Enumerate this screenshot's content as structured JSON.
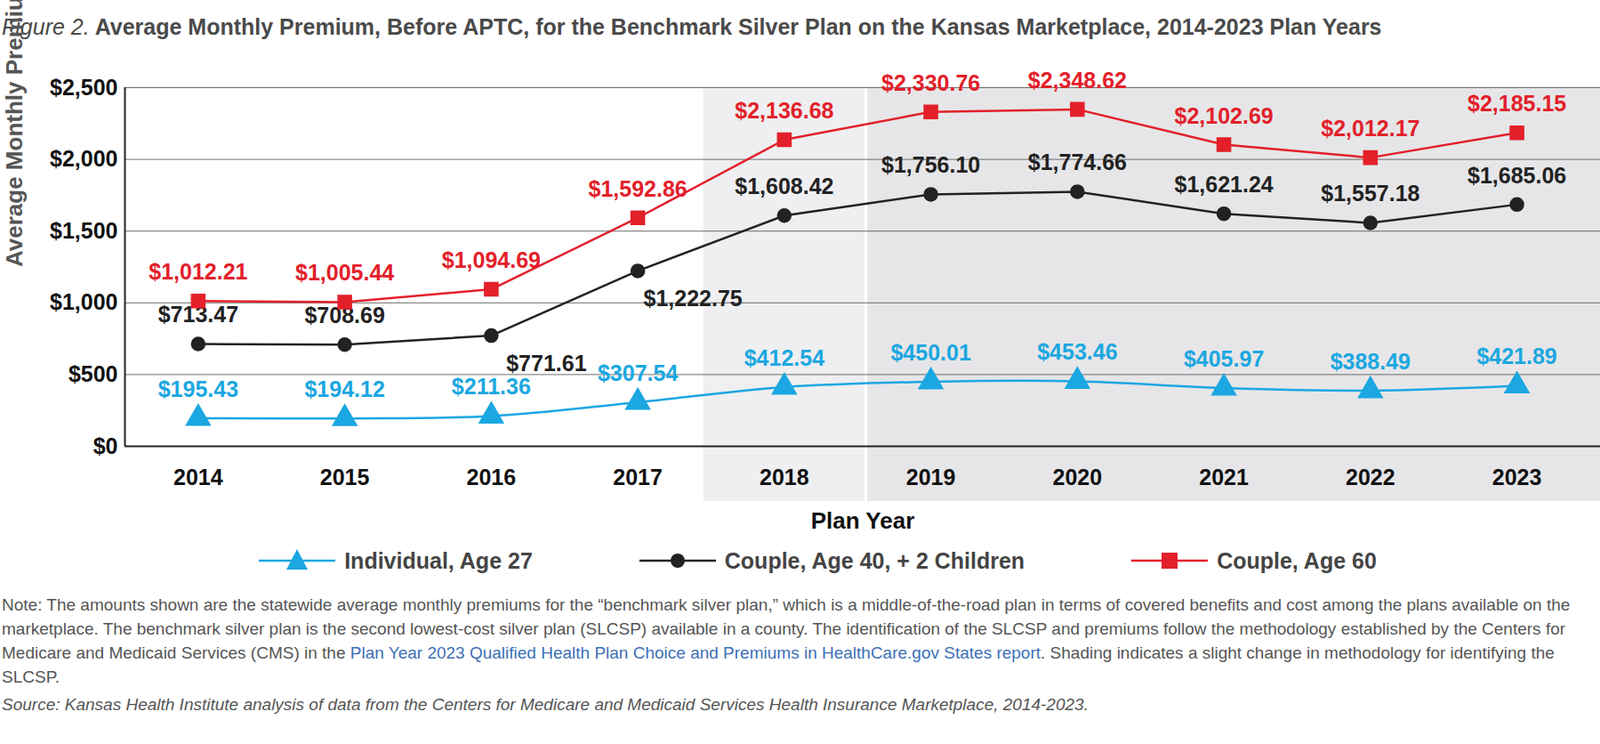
{
  "chart_data": {
    "type": "line",
    "title_prefix": "Figure 2.",
    "title": "Average Monthly Premium, Before APTC, for the Benchmark Silver Plan on the Kansas Marketplace, 2014-2023 Plan Years",
    "x_label": "Plan Year",
    "y_label": "Average Monthly Premium",
    "x": [
      2014,
      2015,
      2016,
      2017,
      2018,
      2019,
      2020,
      2021,
      2022,
      2023
    ],
    "xlim": [
      2013.5,
      2023.57
    ],
    "xticks": [
      2014,
      2015,
      2016,
      2017,
      2018,
      2019,
      2020,
      2021,
      2022,
      2023
    ],
    "ylim": [
      0,
      2500
    ],
    "yticks": [
      {
        "value": 0,
        "label": "$0"
      },
      {
        "value": 500,
        "label": "$500"
      },
      {
        "value": 1000,
        "label": "$1,000"
      },
      {
        "value": 1500,
        "label": "$1,500"
      },
      {
        "value": 2000,
        "label": "$2,000"
      },
      {
        "value": 2500,
        "label": "$2,500"
      }
    ],
    "grid": true,
    "data_labels": true,
    "legend": "bottom",
    "shaded_regions": [
      [
        2017.45,
        2018.55
      ],
      [
        2018.57,
        2023.57
      ]
    ],
    "series": [
      {
        "name": "Individual, Age 27",
        "color": "#1ba7e1",
        "marker": "triangle",
        "line_style": "smooth",
        "values": [
          195.43,
          194.12,
          211.36,
          307.54,
          412.54,
          450.01,
          453.46,
          405.97,
          388.49,
          421.89
        ],
        "value_labels": [
          "$195.43",
          "$194.12",
          "$211.36",
          "$307.54",
          "$412.54",
          "$450.01",
          "$453.46",
          "$405.97",
          "$388.49",
          "$421.89"
        ]
      },
      {
        "name": "Couple, Age 40, + 2 Children",
        "color": "#222222",
        "marker": "circle",
        "line_style": "solid",
        "values": [
          713.47,
          708.69,
          771.61,
          1222.75,
          1608.42,
          1756.1,
          1774.66,
          1621.24,
          1557.18,
          1685.06
        ],
        "value_labels": [
          "$713.47",
          "$708.69",
          "$771.61",
          "$1,222.75",
          "$1,608.42",
          "$1,756.10",
          "$1,774.66",
          "$1,621.24",
          "$1,557.18",
          "$1,685.06"
        ]
      },
      {
        "name": "Couple, Age 60",
        "color": "#e3202a",
        "marker": "square",
        "line_style": "solid",
        "values": [
          1012.21,
          1005.44,
          1094.69,
          1592.86,
          2136.68,
          2330.76,
          2348.62,
          2102.69,
          2012.17,
          2185.15
        ],
        "value_labels": [
          "$1,012.21",
          "$1,005.44",
          "$1,094.69",
          "$1,592.86",
          "$2,136.68",
          "$2,330.76",
          "$2,348.62",
          "$2,102.69",
          "$2,012.17",
          "$2,185.15"
        ]
      }
    ],
    "note": {
      "text": "Note: The amounts shown are the statewide average monthly premiums for the “benchmark silver plan,” which is a middle-of-the-road plan in terms of covered benefits and cost among the plans available on the marketplace. The benchmark silver plan is the second lowest-cost silver plan (SLCSP) available in a county. The identification of the SLCSP and premiums follow the methodology established by the Centers for Medicare and Medicaid Services (CMS) in the ",
      "link": "Plan Year 2023 Qualified Health Plan Choice and Premiums in HealthCare.gov States report",
      "text_after": ". Shading indicates a slight change in methodology for identifying the SLCSP."
    },
    "source": "Source: Kansas Health Institute analysis of data from the Centers for Medicare and Medicaid Services Health Insurance Marketplace, 2014-2023."
  }
}
